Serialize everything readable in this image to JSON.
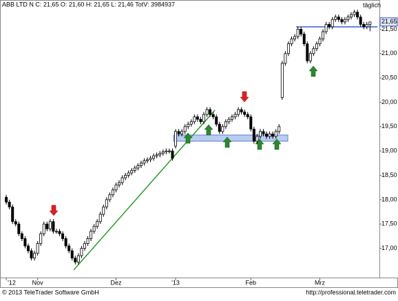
{
  "chart_data": {
    "type": "candlestick",
    "title": "ABB LTD N C: 21,65 O: 21,60 H: 21,65 L: 21,46 TotV: 3984937",
    "interval": "täglich",
    "last_price_label": "21,65",
    "footer_left": "© 2013 TeleTrader Software GmbH",
    "footer_right": "http://professional.teletrader.com",
    "ylim": [
      16.4,
      22.1
    ],
    "yticks": [
      {
        "value": 17,
        "label": "17,00"
      },
      {
        "value": 17.5,
        "label": "17,50"
      },
      {
        "value": 18,
        "label": "18,00"
      },
      {
        "value": 18.5,
        "label": "18,50"
      },
      {
        "value": 19,
        "label": "19,00"
      },
      {
        "value": 19.5,
        "label": "19,50"
      },
      {
        "value": 20,
        "label": "20,00"
      },
      {
        "value": 20.5,
        "label": "20,50"
      },
      {
        "value": 21,
        "label": "21,00"
      },
      {
        "value": 21.5,
        "label": "21,50"
      }
    ],
    "xlim": [
      -2,
      119
    ],
    "xticks": [
      {
        "value": 0,
        "label": "'12"
      },
      {
        "value": 10,
        "label": "Nov"
      },
      {
        "value": 35,
        "label": "Dez"
      },
      {
        "value": 54,
        "label": "'13"
      },
      {
        "value": 78,
        "label": "Feb"
      },
      {
        "value": 100,
        "label": "Mrz"
      }
    ],
    "up_color": "#ffffff",
    "down_color": "#000000",
    "open": [
      18.05,
      17.95,
      17.85,
      17.55,
      17.5,
      17.3,
      17.2,
      17.05,
      16.95,
      16.8,
      16.9,
      17.1,
      17.3,
      17.5,
      17.4,
      17.55,
      17.35,
      17.35,
      17.3,
      17.2,
      17.05,
      16.95,
      16.8,
      16.72,
      16.85,
      17.0,
      17.1,
      17.2,
      17.35,
      17.45,
      17.55,
      17.7,
      17.85,
      18.0,
      18.1,
      18.2,
      18.3,
      18.35,
      18.45,
      18.5,
      18.55,
      18.6,
      18.65,
      18.7,
      18.75,
      18.8,
      18.82,
      18.85,
      18.9,
      18.92,
      18.95,
      18.98,
      19.0,
      19.0,
      19.1,
      19.4,
      19.35,
      19.4,
      19.5,
      19.55,
      19.6,
      19.7,
      19.65,
      19.6,
      19.75,
      19.85,
      19.75,
      19.7,
      19.55,
      19.4,
      19.5,
      19.6,
      19.65,
      19.7,
      19.75,
      19.85,
      19.8,
      19.75,
      19.7,
      19.45,
      19.2,
      19.3,
      19.4,
      19.35,
      19.3,
      19.35,
      19.3,
      19.4,
      20.1,
      20.8,
      21.0,
      21.2,
      21.3,
      21.35,
      21.5,
      21.4,
      21.2,
      20.85,
      21.0,
      21.1,
      21.2,
      21.3,
      21.45,
      21.6,
      21.55,
      21.7,
      21.75,
      21.7,
      21.65,
      21.7,
      21.75,
      21.8,
      21.85,
      21.75,
      21.6,
      21.55,
      21.6
    ],
    "high": [
      18.1,
      18.0,
      17.9,
      17.6,
      17.55,
      17.35,
      17.25,
      17.1,
      17.0,
      16.95,
      17.15,
      17.35,
      17.55,
      17.55,
      17.6,
      17.6,
      17.4,
      17.4,
      17.35,
      17.25,
      17.1,
      17.0,
      16.85,
      16.9,
      17.05,
      17.15,
      17.25,
      17.4,
      17.5,
      17.6,
      17.75,
      17.9,
      18.05,
      18.15,
      18.25,
      18.35,
      18.4,
      18.5,
      18.55,
      18.6,
      18.65,
      18.7,
      18.75,
      18.8,
      18.85,
      18.87,
      18.9,
      18.95,
      18.97,
      19.0,
      19.03,
      19.05,
      19.05,
      19.05,
      19.45,
      19.45,
      19.45,
      19.55,
      19.6,
      19.65,
      19.75,
      19.75,
      19.7,
      19.8,
      19.9,
      19.9,
      19.8,
      19.75,
      19.6,
      19.55,
      19.65,
      19.7,
      19.75,
      19.8,
      19.9,
      19.9,
      19.85,
      19.8,
      19.75,
      19.5,
      19.35,
      19.45,
      19.45,
      19.4,
      19.4,
      19.4,
      19.45,
      19.55,
      20.85,
      21.05,
      21.25,
      21.35,
      21.4,
      21.55,
      21.55,
      21.45,
      21.25,
      21.05,
      21.15,
      21.25,
      21.35,
      21.5,
      21.65,
      21.65,
      21.75,
      21.8,
      21.8,
      21.75,
      21.75,
      21.8,
      21.85,
      21.9,
      21.9,
      21.8,
      21.65,
      21.65,
      21.65
    ],
    "low": [
      17.9,
      17.8,
      17.5,
      17.45,
      17.25,
      17.15,
      17.0,
      16.9,
      16.75,
      16.75,
      16.85,
      17.05,
      17.25,
      17.35,
      17.35,
      17.3,
      17.3,
      17.25,
      17.15,
      17.0,
      16.9,
      16.75,
      16.67,
      16.67,
      16.8,
      16.95,
      17.05,
      17.15,
      17.3,
      17.4,
      17.5,
      17.65,
      17.8,
      17.95,
      18.05,
      18.15,
      18.25,
      18.3,
      18.4,
      18.45,
      18.5,
      18.55,
      18.6,
      18.65,
      18.7,
      18.75,
      18.77,
      18.8,
      18.85,
      18.87,
      18.9,
      18.93,
      18.95,
      18.8,
      19.05,
      19.3,
      19.3,
      19.35,
      19.45,
      19.5,
      19.55,
      19.6,
      19.55,
      19.55,
      19.7,
      19.7,
      19.65,
      19.5,
      19.35,
      19.35,
      19.45,
      19.55,
      19.6,
      19.65,
      19.7,
      19.75,
      19.7,
      19.65,
      19.4,
      19.15,
      19.15,
      19.25,
      19.3,
      19.25,
      19.25,
      19.25,
      19.25,
      19.35,
      20.05,
      20.75,
      20.95,
      21.15,
      21.25,
      21.3,
      21.35,
      21.15,
      20.8,
      20.8,
      20.95,
      21.05,
      21.15,
      21.25,
      21.4,
      21.5,
      21.5,
      21.65,
      21.65,
      21.6,
      21.6,
      21.65,
      21.7,
      21.75,
      21.7,
      21.55,
      21.5,
      21.5,
      21.46
    ],
    "close": [
      17.95,
      17.85,
      17.55,
      17.5,
      17.3,
      17.2,
      17.05,
      16.95,
      16.8,
      16.9,
      17.1,
      17.3,
      17.5,
      17.4,
      17.55,
      17.35,
      17.35,
      17.3,
      17.2,
      17.05,
      16.95,
      16.8,
      16.72,
      16.85,
      17.0,
      17.1,
      17.2,
      17.35,
      17.45,
      17.55,
      17.7,
      17.85,
      18.0,
      18.1,
      18.2,
      18.3,
      18.35,
      18.45,
      18.5,
      18.55,
      18.6,
      18.65,
      18.7,
      18.75,
      18.8,
      18.82,
      18.85,
      18.9,
      18.92,
      18.95,
      18.98,
      19.0,
      19.0,
      18.85,
      19.4,
      19.35,
      19.4,
      19.5,
      19.55,
      19.6,
      19.7,
      19.65,
      19.6,
      19.75,
      19.85,
      19.75,
      19.7,
      19.55,
      19.4,
      19.5,
      19.6,
      19.65,
      19.7,
      19.75,
      19.85,
      19.8,
      19.75,
      19.7,
      19.45,
      19.2,
      19.3,
      19.4,
      19.35,
      19.3,
      19.35,
      19.3,
      19.4,
      19.5,
      20.8,
      21.0,
      21.2,
      21.3,
      21.35,
      21.5,
      21.4,
      21.2,
      20.85,
      21.0,
      21.1,
      21.2,
      21.3,
      21.45,
      21.6,
      21.55,
      21.7,
      21.75,
      21.7,
      21.65,
      21.7,
      21.75,
      21.8,
      21.85,
      21.75,
      21.6,
      21.55,
      21.6,
      21.65
    ]
  }
}
